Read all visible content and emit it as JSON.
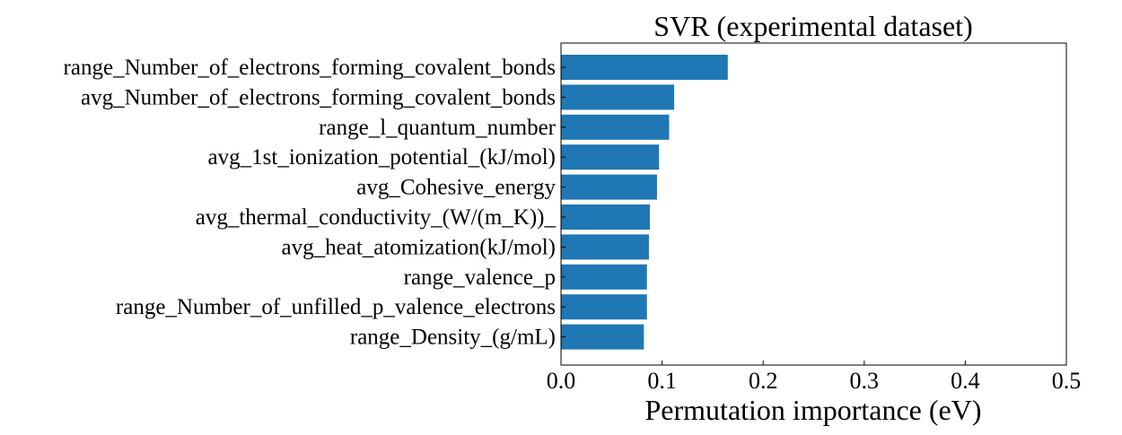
{
  "chart_data": {
    "type": "bar",
    "orientation": "horizontal",
    "title": "SVR (experimental dataset)",
    "xlabel": "Permutation importance (eV)",
    "ylabel": "",
    "xlim": [
      0.0,
      0.5
    ],
    "xticks": [
      "0.0",
      "0.1",
      "0.2",
      "0.3",
      "0.4",
      "0.5"
    ],
    "grid": false,
    "legend": "none",
    "bar_color": "#1f77b4",
    "categories": [
      "range_Number_of_electrons_forming_covalent_bonds",
      "avg_Number_of_electrons_forming_covalent_bonds",
      "range_l_quantum_number",
      "avg_1st_ionization_potential_(kJ/mol)",
      "avg_Cohesive_energy",
      "avg_thermal_conductivity_(W/(m_K))_",
      "avg_heat_atomization(kJ/mol)",
      "range_valence_p",
      "range_Number_of_unfilled_p_valence_electrons",
      "range_Density_(g/mL)"
    ],
    "values": [
      0.165,
      0.112,
      0.107,
      0.097,
      0.095,
      0.088,
      0.087,
      0.085,
      0.085,
      0.082
    ]
  }
}
